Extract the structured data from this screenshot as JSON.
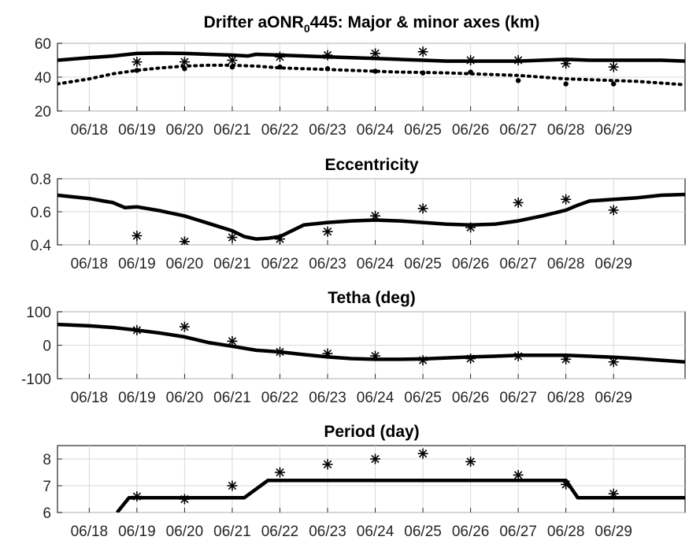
{
  "chart_data": [
    {
      "type": "line",
      "title": "Drifter aONR",
      "title_sub": "0",
      "title_rest": "445: Major & minor axes (km)",
      "xlabel": "",
      "ylabel": "",
      "x_ticks": [
        "06/18",
        "06/19",
        "06/20",
        "06/21",
        "06/22",
        "06/23",
        "06/24",
        "06/25",
        "06/26",
        "06/27",
        "06/28",
        "06/29"
      ],
      "xlim": [
        "06/17 08:00",
        "06/30 12:00"
      ],
      "ylim": [
        20,
        60
      ],
      "y_ticks": [
        20,
        40,
        60
      ],
      "grid": true,
      "series": [
        {
          "style": "solid-line",
          "x": [
            "06/17 08:00",
            "06/18 00:00",
            "06/18 12:00",
            "06/19 00:00",
            "06/19 12:00",
            "06/20 00:00",
            "06/20 12:00",
            "06/21 00:00",
            "06/21 08:00",
            "06/21 12:00",
            "06/22 00:00",
            "06/22 12:00",
            "06/23 00:00",
            "06/23 12:00",
            "06/24 00:00",
            "06/24 12:00",
            "06/25 00:00",
            "06/25 12:00",
            "06/26 00:00",
            "06/26 12:00",
            "06/27 00:00",
            "06/27 12:00",
            "06/28 00:00",
            "06/28 12:00",
            "06/29 00:00",
            "06/29 12:00",
            "06/30 00:00",
            "06/30 12:00"
          ],
          "y": [
            50,
            51.5,
            52.5,
            54,
            54.2,
            54,
            53.5,
            53,
            52.5,
            53.5,
            53,
            52.5,
            52,
            51.5,
            51,
            50.5,
            50,
            49.5,
            49.5,
            49.5,
            49.5,
            50,
            50.5,
            50,
            50,
            50,
            50,
            49.5
          ]
        },
        {
          "style": "dotted-line",
          "x": [
            "06/17 08:00",
            "06/18 00:00",
            "06/18 12:00",
            "06/19 00:00",
            "06/19 12:00",
            "06/20 00:00",
            "06/20 12:00",
            "06/21 00:00",
            "06/21 12:00",
            "06/22 00:00",
            "06/22 12:00",
            "06/23 00:00",
            "06/23 12:00",
            "06/24 00:00",
            "06/24 12:00",
            "06/25 00:00",
            "06/25 12:00",
            "06/26 00:00",
            "06/26 12:00",
            "06/27 00:00",
            "06/27 12:00",
            "06/28 00:00",
            "06/28 12:00",
            "06/29 00:00",
            "06/29 12:00",
            "06/30 00:00",
            "06/30 12:00"
          ],
          "y": [
            36,
            39,
            42,
            44,
            45.5,
            46.5,
            47,
            47,
            46.5,
            45.5,
            45,
            44.5,
            44,
            43.5,
            43,
            42.8,
            42.5,
            42,
            41.5,
            41,
            40,
            39,
            38.5,
            38,
            37.5,
            36.5,
            35.5
          ]
        },
        {
          "style": "asterisk-markers",
          "x": [
            "06/19",
            "06/20",
            "06/21",
            "06/22",
            "06/23",
            "06/24",
            "06/25",
            "06/26",
            "06/27",
            "06/28",
            "06/29"
          ],
          "y": [
            49,
            49,
            50,
            52,
            53,
            54,
            55,
            50,
            50,
            48,
            46
          ]
        },
        {
          "style": "dot-markers",
          "x": [
            "06/19",
            "06/20",
            "06/21",
            "06/22",
            "06/23",
            "06/24",
            "06/25",
            "06/26",
            "06/27",
            "06/28",
            "06/29"
          ],
          "y": [
            44,
            45,
            46,
            46,
            45,
            43.5,
            42.5,
            43,
            38,
            36,
            36
          ]
        }
      ]
    },
    {
      "type": "line",
      "title": "Eccentricity",
      "xlabel": "",
      "ylabel": "",
      "x_ticks": [
        "06/18",
        "06/19",
        "06/20",
        "06/21",
        "06/22",
        "06/23",
        "06/24",
        "06/25",
        "06/26",
        "06/27",
        "06/28",
        "06/29"
      ],
      "xlim": [
        "06/17 08:00",
        "06/30 12:00"
      ],
      "ylim": [
        0.4,
        0.8
      ],
      "y_ticks": [
        0.4,
        0.6,
        0.8
      ],
      "grid": true,
      "series": [
        {
          "style": "solid-line",
          "x": [
            "06/17 08:00",
            "06/18 00:00",
            "06/18 12:00",
            "06/18 18:00",
            "06/19 00:00",
            "06/19 12:00",
            "06/20 00:00",
            "06/20 12:00",
            "06/21 00:00",
            "06/21 06:00",
            "06/21 12:00",
            "06/21 18:00",
            "06/22 00:00",
            "06/22 12:00",
            "06/23 00:00",
            "06/23 12:00",
            "06/24 00:00",
            "06/24 12:00",
            "06/25 00:00",
            "06/25 12:00",
            "06/26 00:00",
            "06/26 12:00",
            "06/27 00:00",
            "06/27 12:00",
            "06/28 00:00",
            "06/28 06:00",
            "06/28 12:00",
            "06/29 00:00",
            "06/29 12:00",
            "06/30 00:00",
            "06/30 12:00"
          ],
          "y": [
            0.7,
            0.68,
            0.655,
            0.625,
            0.63,
            0.605,
            0.575,
            0.53,
            0.485,
            0.45,
            0.435,
            0.44,
            0.45,
            0.52,
            0.535,
            0.545,
            0.55,
            0.545,
            0.535,
            0.525,
            0.52,
            0.525,
            0.545,
            0.575,
            0.61,
            0.64,
            0.665,
            0.675,
            0.685,
            0.7,
            0.705
          ]
        },
        {
          "style": "asterisk-markers",
          "x": [
            "06/19",
            "06/20",
            "06/21",
            "06/22",
            "06/23",
            "06/24",
            "06/25",
            "06/26",
            "06/27",
            "06/28",
            "06/29"
          ],
          "y": [
            0.455,
            0.42,
            0.445,
            0.435,
            0.48,
            0.575,
            0.62,
            0.505,
            0.655,
            0.675,
            0.61
          ]
        }
      ]
    },
    {
      "type": "line",
      "title": "Tetha (deg)",
      "xlabel": "",
      "ylabel": "",
      "x_ticks": [
        "06/18",
        "06/19",
        "06/20",
        "06/21",
        "06/22",
        "06/23",
        "06/24",
        "06/25",
        "06/26",
        "06/27",
        "06/28",
        "06/29"
      ],
      "xlim": [
        "06/17 08:00",
        "06/30 12:00"
      ],
      "ylim": [
        -100,
        100
      ],
      "y_ticks": [
        -100,
        0,
        100
      ],
      "grid": true,
      "series": [
        {
          "style": "solid-line",
          "x": [
            "06/17 08:00",
            "06/18 00:00",
            "06/18 12:00",
            "06/19 00:00",
            "06/19 12:00",
            "06/20 00:00",
            "06/20 12:00",
            "06/21 00:00",
            "06/21 12:00",
            "06/22 00:00",
            "06/22 12:00",
            "06/23 00:00",
            "06/23 12:00",
            "06/24 00:00",
            "06/24 12:00",
            "06/25 00:00",
            "06/25 12:00",
            "06/26 00:00",
            "06/26 12:00",
            "06/27 00:00",
            "06/27 12:00",
            "06/28 00:00",
            "06/28 12:00",
            "06/29 00:00",
            "06/29 12:00",
            "06/30 00:00",
            "06/30 12:00"
          ],
          "y": [
            62,
            58,
            53,
            45,
            36,
            25,
            8,
            -3,
            -15,
            -20,
            -28,
            -35,
            -40,
            -42,
            -42,
            -41,
            -38,
            -35,
            -33,
            -30,
            -30,
            -30,
            -33,
            -36,
            -40,
            -45,
            -50
          ]
        },
        {
          "style": "asterisk-markers",
          "x": [
            "06/19",
            "06/20",
            "06/21",
            "06/22",
            "06/23",
            "06/24",
            "06/25",
            "06/26",
            "06/27",
            "06/28",
            "06/29"
          ],
          "y": [
            45,
            55,
            12,
            -20,
            -25,
            -32,
            -45,
            -40,
            -33,
            -42,
            -50
          ]
        }
      ]
    },
    {
      "type": "line",
      "title": "Period (day)",
      "xlabel": "",
      "ylabel": "",
      "x_ticks": [
        "06/18",
        "06/19",
        "06/20",
        "06/21",
        "06/22",
        "06/23",
        "06/24",
        "06/25",
        "06/26",
        "06/27",
        "06/28",
        "06/29"
      ],
      "xlim": [
        "06/17 08:00",
        "06/30 12:00"
      ],
      "ylim": [
        6,
        8.5
      ],
      "y_ticks": [
        6,
        7,
        8
      ],
      "grid": true,
      "series": [
        {
          "style": "solid-line",
          "x": [
            "06/18 14:00",
            "06/18 20:00",
            "06/21 06:00",
            "06/21 18:00",
            "06/28 00:00",
            "06/28 06:00",
            "06/30 12:00"
          ],
          "y": [
            6.0,
            6.55,
            6.55,
            7.2,
            7.2,
            6.55,
            6.55
          ]
        },
        {
          "style": "asterisk-markers",
          "x": [
            "06/19",
            "06/20",
            "06/21",
            "06/22",
            "06/23",
            "06/24",
            "06/25",
            "06/26",
            "06/27",
            "06/28",
            "06/29"
          ],
          "y": [
            6.6,
            6.5,
            7.0,
            7.5,
            7.8,
            8.0,
            8.2,
            7.9,
            7.4,
            7.05,
            6.7
          ]
        }
      ]
    }
  ]
}
